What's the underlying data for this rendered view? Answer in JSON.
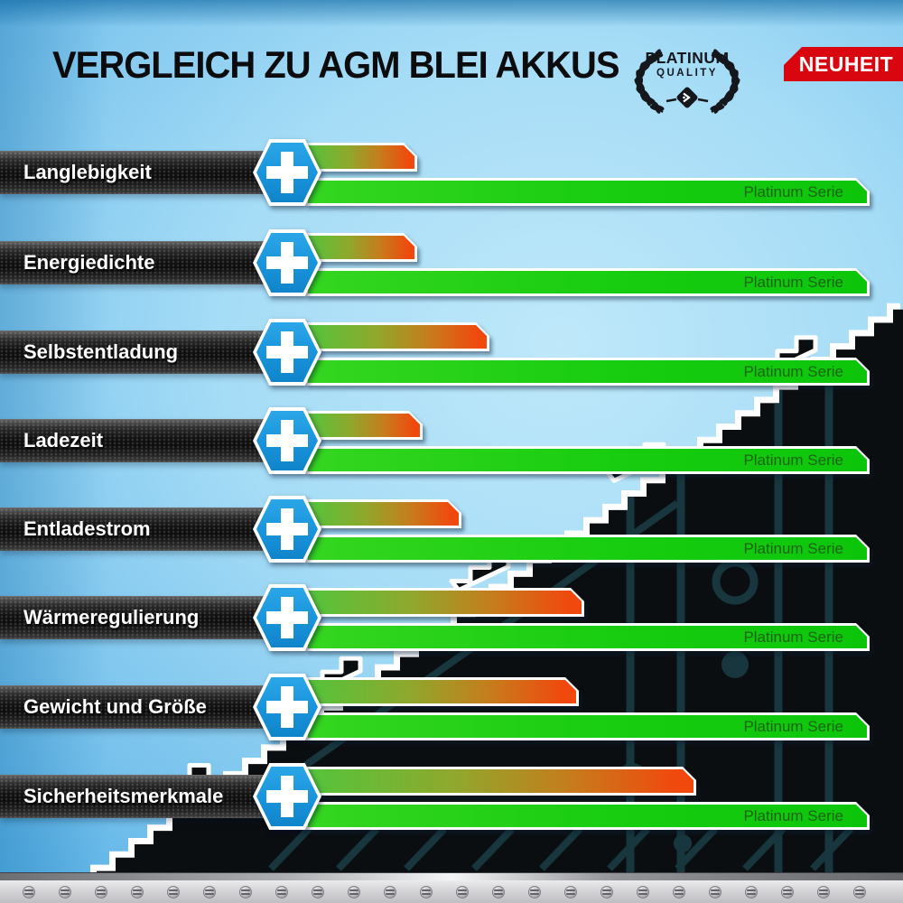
{
  "header": {
    "title": "VERGLEICH ZU AGM BLEI AKKUS",
    "new_badge": "NEUHEIT",
    "quality_badge": {
      "line1": "PLATINUM",
      "line2": "QUALITY"
    }
  },
  "rows": [
    {
      "label": "Langlebigkeit",
      "agm_pct": 19,
      "platinum_label": "Platinum Serie"
    },
    {
      "label": "Energiedichte",
      "agm_pct": 19,
      "platinum_label": "Platinum Serie"
    },
    {
      "label": "Selbstentladung",
      "agm_pct": 32,
      "platinum_label": "Platinum Serie"
    },
    {
      "label": "Ladezeit",
      "agm_pct": 20,
      "platinum_label": "Platinum Serie"
    },
    {
      "label": "Entladestrom",
      "agm_pct": 27,
      "platinum_label": "Platinum Serie"
    },
    {
      "label": "Wärmeregulierung",
      "agm_pct": 49,
      "platinum_label": "Platinum Serie"
    },
    {
      "label": "Gewicht und Größe",
      "agm_pct": 48,
      "platinum_label": "Platinum Serie"
    },
    {
      "label": "Sicherheitsmerkmale",
      "agm_pct": 69,
      "platinum_label": "Platinum Serie"
    }
  ],
  "colors": {
    "background_blue": "#5ab4e6",
    "badge_red": "#da060f",
    "hexagon_blue": "#1b96dc",
    "platinum_green": "#18cd10",
    "agm_gradient_start": "#53c43b",
    "agm_gradient_end": "#f1480e",
    "label_bar_black": "#111111",
    "circuit_trace_teal": "#17363d"
  },
  "chart_data": {
    "type": "bar",
    "title": "VERGLEICH ZU AGM BLEI AKKUS",
    "categories": [
      "Langlebigkeit",
      "Energiedichte",
      "Selbstentladung",
      "Ladezeit",
      "Entladestrom",
      "Wärmeregulierung",
      "Gewicht und Größe",
      "Sicherheitsmerkmale"
    ],
    "series": [
      {
        "name": "AGM Blei Akku",
        "values": [
          19,
          19,
          32,
          20,
          27,
          49,
          48,
          69
        ]
      },
      {
        "name": "Platinum Serie",
        "values": [
          100,
          100,
          100,
          100,
          100,
          100,
          100,
          100
        ]
      }
    ],
    "value_unit": "percent of Platinum Serie bar length (estimated from pixels)",
    "orientation": "horizontal",
    "grid": false,
    "legend_position": "on-bar",
    "xlabel": "",
    "ylabel": ""
  }
}
